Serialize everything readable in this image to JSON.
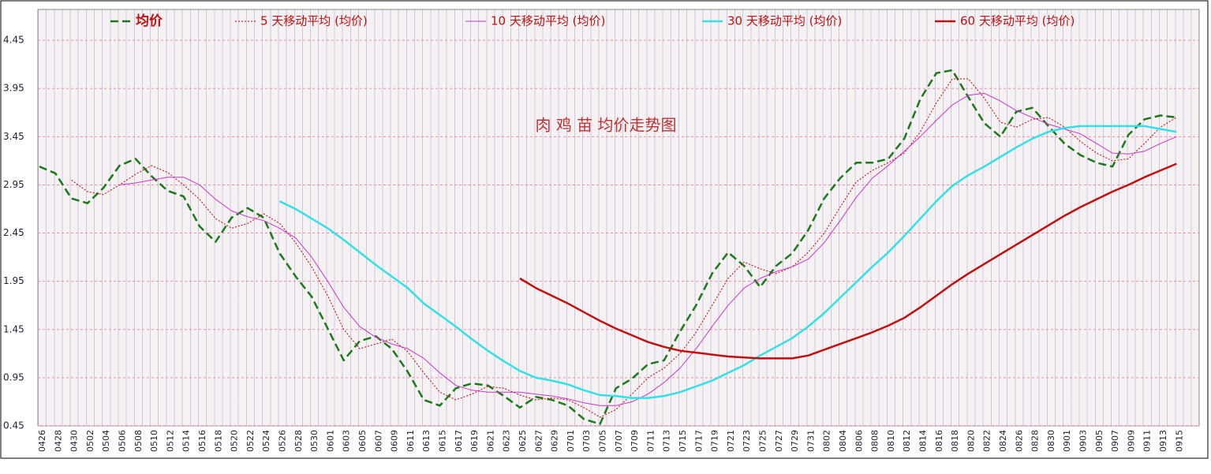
{
  "chart_data": {
    "type": "line",
    "title": "肉 鸡 苗 均价走势图",
    "categories": [
      "0426",
      "0428",
      "0430",
      "0502",
      "0504",
      "0506",
      "0508",
      "0510",
      "0512",
      "0514",
      "0516",
      "0518",
      "0520",
      "0522",
      "0524",
      "0526",
      "0528",
      "0530",
      "0601",
      "0603",
      "0605",
      "0607",
      "0609",
      "0611",
      "0613",
      "0615",
      "0617",
      "0619",
      "0621",
      "0623",
      "0625",
      "0627",
      "0629",
      "0701",
      "0703",
      "0705",
      "0707",
      "0709",
      "0711",
      "0713",
      "0715",
      "0717",
      "0719",
      "0721",
      "0723",
      "0725",
      "0727",
      "0729",
      "0731",
      "0802",
      "0804",
      "0806",
      "0808",
      "0810",
      "0812",
      "0814",
      "0816",
      "0818",
      "0820",
      "0822",
      "0824",
      "0826",
      "0828",
      "0830",
      "0901",
      "0903",
      "0905",
      "0907",
      "0909",
      "0911",
      "0913",
      "0915"
    ],
    "ylim": [
      0.45,
      4.77
    ],
    "yticks": [
      {
        "value": 0.45,
        "label": "0.45"
      },
      {
        "value": 0.95,
        "label": "0.95"
      },
      {
        "value": 1.45,
        "label": "1.45"
      },
      {
        "value": 1.95,
        "label": "1.95"
      },
      {
        "value": 2.45,
        "label": "2.45"
      },
      {
        "value": 2.95,
        "label": "2.95"
      },
      {
        "value": 3.45,
        "label": "3.45"
      },
      {
        "value": 3.95,
        "label": "3.95"
      },
      {
        "value": 4.45,
        "label": "4.45"
      }
    ],
    "grid": true,
    "series": [
      {
        "name": "均价",
        "color": "#1a7a1a",
        "style": "dashed",
        "values": [
          3.14,
          3.07,
          2.81,
          2.76,
          2.92,
          3.15,
          3.22,
          3.04,
          2.89,
          2.83,
          2.52,
          2.36,
          2.61,
          2.71,
          2.61,
          2.24,
          2.0,
          1.79,
          1.46,
          1.13,
          1.33,
          1.38,
          1.25,
          1.01,
          0.72,
          0.66,
          0.84,
          0.89,
          0.87,
          0.76,
          0.64,
          0.75,
          0.72,
          0.66,
          0.52,
          0.47,
          0.84,
          0.94,
          1.09,
          1.13,
          1.43,
          1.7,
          2.03,
          2.25,
          2.11,
          1.89,
          2.11,
          2.24,
          2.48,
          2.81,
          3.02,
          3.18,
          3.18,
          3.22,
          3.43,
          3.84,
          4.11,
          4.14,
          3.86,
          3.59,
          3.45,
          3.71,
          3.75,
          3.56,
          3.38,
          3.26,
          3.18,
          3.14,
          3.47,
          3.63,
          3.67,
          3.65
        ]
      },
      {
        "name": "5 天移动平均 (均价)",
        "color": "#c00000",
        "style": "dotted",
        "values": [
          null,
          null,
          3.0,
          2.88,
          2.85,
          2.95,
          3.06,
          3.15,
          3.08,
          2.95,
          2.8,
          2.6,
          2.5,
          2.55,
          2.65,
          2.55,
          2.35,
          2.1,
          1.8,
          1.45,
          1.25,
          1.3,
          1.35,
          1.22,
          1.0,
          0.8,
          0.72,
          0.78,
          0.86,
          0.84,
          0.77,
          0.72,
          0.74,
          0.72,
          0.64,
          0.54,
          0.62,
          0.78,
          0.95,
          1.05,
          1.2,
          1.42,
          1.7,
          1.98,
          2.15,
          2.08,
          2.03,
          2.1,
          2.25,
          2.45,
          2.72,
          2.98,
          3.1,
          3.18,
          3.28,
          3.5,
          3.8,
          4.05,
          4.05,
          3.85,
          3.6,
          3.55,
          3.63,
          3.65,
          3.55,
          3.4,
          3.28,
          3.2,
          3.22,
          3.38,
          3.55,
          3.65
        ]
      },
      {
        "name": "10 天移动平均 (均价)",
        "color": "#cc33cc",
        "style": "solid",
        "values": [
          null,
          null,
          null,
          null,
          null,
          2.95,
          2.97,
          3.0,
          3.03,
          3.03,
          2.95,
          2.8,
          2.68,
          2.62,
          2.58,
          2.5,
          2.4,
          2.2,
          1.95,
          1.68,
          1.48,
          1.37,
          1.3,
          1.25,
          1.15,
          1.0,
          0.87,
          0.82,
          0.8,
          0.8,
          0.8,
          0.78,
          0.76,
          0.73,
          0.69,
          0.66,
          0.66,
          0.7,
          0.78,
          0.9,
          1.05,
          1.25,
          1.48,
          1.7,
          1.88,
          1.98,
          2.05,
          2.1,
          2.18,
          2.35,
          2.58,
          2.82,
          3.02,
          3.15,
          3.3,
          3.45,
          3.62,
          3.78,
          3.88,
          3.9,
          3.82,
          3.72,
          3.65,
          3.58,
          3.53,
          3.48,
          3.38,
          3.28,
          3.27,
          3.3,
          3.38,
          3.45
        ]
      },
      {
        "name": "30 天移动平均 (均价)",
        "color": "#33e0e8",
        "style": "thick",
        "values": [
          null,
          null,
          null,
          null,
          null,
          null,
          null,
          null,
          null,
          null,
          null,
          null,
          null,
          null,
          null,
          2.78,
          2.7,
          2.6,
          2.5,
          2.38,
          2.25,
          2.12,
          2.0,
          1.88,
          1.72,
          1.6,
          1.48,
          1.35,
          1.23,
          1.12,
          1.02,
          0.95,
          0.92,
          0.88,
          0.82,
          0.77,
          0.76,
          0.74,
          0.74,
          0.76,
          0.8,
          0.86,
          0.92,
          1.0,
          1.08,
          1.18,
          1.27,
          1.36,
          1.48,
          1.62,
          1.78,
          1.94,
          2.1,
          2.25,
          2.42,
          2.6,
          2.78,
          2.94,
          3.05,
          3.14,
          3.24,
          3.34,
          3.43,
          3.5,
          3.54,
          3.56,
          3.56,
          3.56,
          3.56,
          3.56,
          3.53,
          3.5
        ]
      },
      {
        "name": "60 天移动平均 (均价)",
        "color": "#c01010",
        "style": "thick",
        "values": [
          null,
          null,
          null,
          null,
          null,
          null,
          null,
          null,
          null,
          null,
          null,
          null,
          null,
          null,
          null,
          null,
          null,
          null,
          null,
          null,
          null,
          null,
          null,
          null,
          null,
          null,
          null,
          null,
          null,
          null,
          1.98,
          1.88,
          1.8,
          1.72,
          1.63,
          1.54,
          1.46,
          1.39,
          1.32,
          1.27,
          1.23,
          1.21,
          1.19,
          1.17,
          1.16,
          1.15,
          1.15,
          1.15,
          1.18,
          1.24,
          1.3,
          1.36,
          1.42,
          1.49,
          1.57,
          1.68,
          1.8,
          1.92,
          2.03,
          2.13,
          2.23,
          2.33,
          2.43,
          2.53,
          2.63,
          2.72,
          2.8,
          2.88,
          2.95,
          3.03,
          3.1,
          3.17
        ]
      }
    ]
  }
}
